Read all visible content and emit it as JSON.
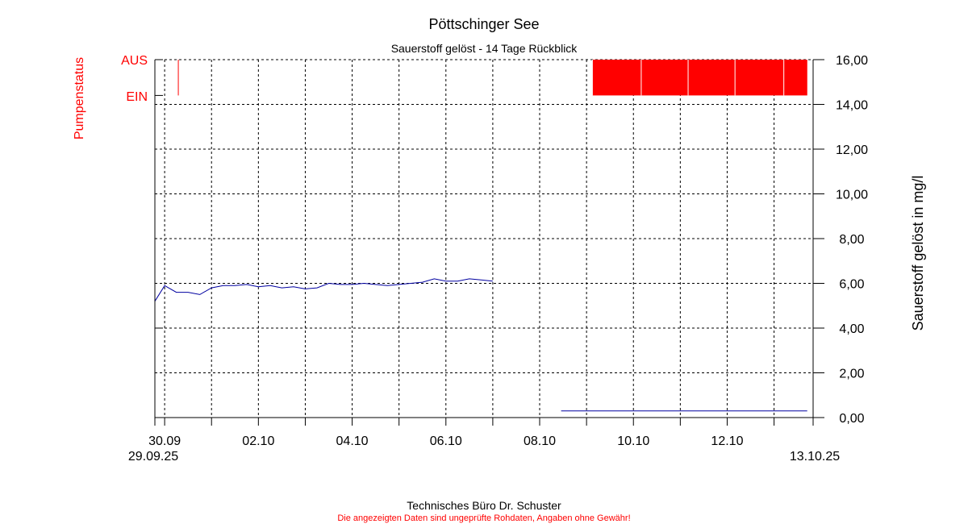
{
  "chart_data": {
    "type": "line",
    "title": "Pöttschinger See",
    "subtitle": "Sauerstoff gelöst - 14 Tage Rückblick",
    "ylabel": "Sauerstoff gelöst in mg/l",
    "ylim": [
      0,
      16
    ],
    "yticks": [
      "0,00",
      "2,00",
      "4,00",
      "6,00",
      "8,00",
      "10,00",
      "12,00",
      "14,00",
      "16,00"
    ],
    "xlim": [
      "2025-09-29T19:00",
      "2025-10-13T20:00"
    ],
    "xtick_labels": [
      "30.09",
      "02.10",
      "04.10",
      "06.10",
      "08.10",
      "10.10",
      "12.10"
    ],
    "x_start_label": "29.09.25",
    "x_end_label": "13.10.25",
    "grid": true,
    "pump_status": {
      "label": "Pumpenstatus",
      "on_label": "EIN",
      "off_label": "AUS",
      "color": "#ff0000",
      "pulse": "2025-09-30T07:00",
      "on_block": [
        "2025-10-09T03:00",
        "2025-10-13T17:00"
      ],
      "block_dividers": [
        "2025-10-09T03:00",
        "2025-10-10T04:00",
        "2025-10-11T04:00",
        "2025-10-12T04:00",
        "2025-10-13T05:00"
      ]
    },
    "series": [
      {
        "color": "#0000a0",
        "points": [
          [
            "2025-09-29T19:00",
            5.2
          ],
          [
            "2025-09-30T00:00",
            5.9
          ],
          [
            "2025-09-30T06:00",
            5.6
          ],
          [
            "2025-09-30T12:00",
            5.6
          ],
          [
            "2025-09-30T18:00",
            5.5
          ],
          [
            "2025-10-01T00:00",
            5.8
          ],
          [
            "2025-10-01T06:00",
            5.9
          ],
          [
            "2025-10-01T12:00",
            5.9
          ],
          [
            "2025-10-01T18:00",
            5.95
          ],
          [
            "2025-10-02T00:00",
            5.85
          ],
          [
            "2025-10-02T06:00",
            5.9
          ],
          [
            "2025-10-02T12:00",
            5.8
          ],
          [
            "2025-10-02T18:00",
            5.85
          ],
          [
            "2025-10-03T00:00",
            5.75
          ],
          [
            "2025-10-03T06:00",
            5.8
          ],
          [
            "2025-10-03T12:00",
            6.0
          ],
          [
            "2025-10-03T18:00",
            5.95
          ],
          [
            "2025-10-04T00:00",
            5.95
          ],
          [
            "2025-10-04T06:00",
            6.0
          ],
          [
            "2025-10-04T12:00",
            5.95
          ],
          [
            "2025-10-04T18:00",
            5.9
          ],
          [
            "2025-10-05T00:00",
            5.95
          ],
          [
            "2025-10-05T06:00",
            6.0
          ],
          [
            "2025-10-05T12:00",
            6.05
          ],
          [
            "2025-10-05T18:00",
            6.2
          ],
          [
            "2025-10-06T00:00",
            6.1
          ],
          [
            "2025-10-06T06:00",
            6.1
          ],
          [
            "2025-10-06T12:00",
            6.2
          ],
          [
            "2025-10-06T18:00",
            6.15
          ],
          [
            "2025-10-07T00:00",
            6.1
          ]
        ]
      },
      {
        "color": "#0000a0",
        "points": [
          [
            "2025-10-08T11:00",
            0.3
          ],
          [
            "2025-10-13T17:00",
            0.3
          ]
        ]
      }
    ]
  },
  "footer": {
    "credit": "Technisches Büro Dr. Schuster",
    "disclaimer": "Die angezeigten Daten sind ungeprüfte Rohdaten, Angaben ohne Gewähr!"
  }
}
